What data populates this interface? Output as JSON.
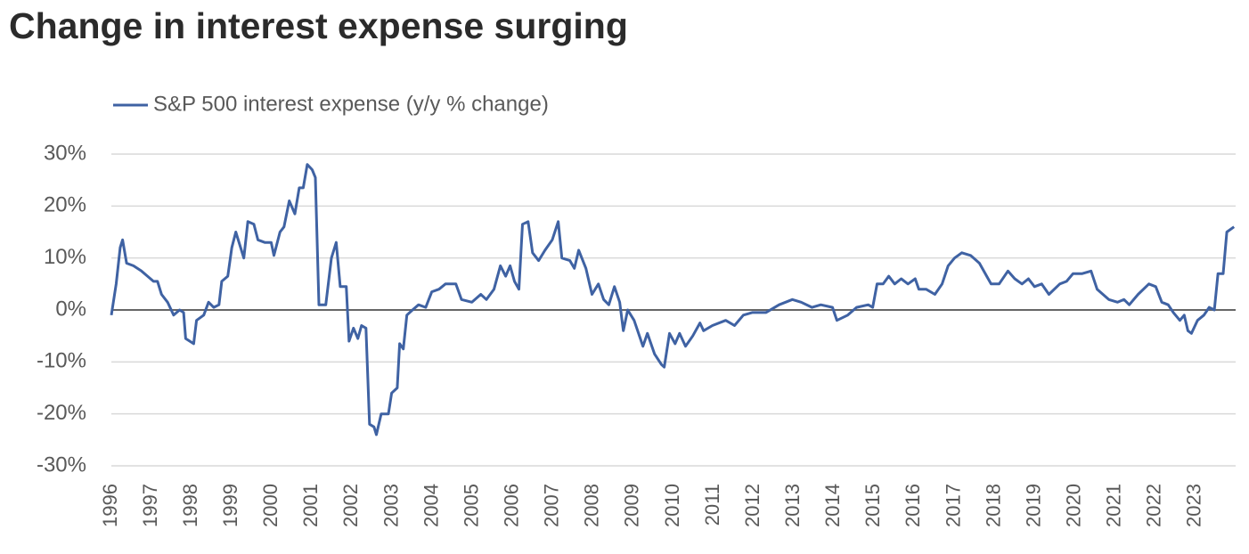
{
  "chart_data": {
    "type": "line",
    "title": "Change in interest expense surging",
    "x": [
      1996.0,
      1996.12,
      1996.22,
      1996.28,
      1996.38,
      1996.55,
      1996.75,
      1996.9,
      1997.05,
      1997.15,
      1997.25,
      1997.4,
      1997.55,
      1997.7,
      1997.8,
      1997.85,
      1998.05,
      1998.12,
      1998.3,
      1998.42,
      1998.55,
      1998.68,
      1998.75,
      1998.9,
      1999.0,
      1999.1,
      1999.18,
      1999.3,
      1999.4,
      1999.55,
      1999.65,
      1999.82,
      1999.98,
      2000.05,
      2000.2,
      2000.3,
      2000.43,
      2000.57,
      2000.68,
      2000.78,
      2000.88,
      2001.0,
      2001.08,
      2001.17,
      2001.34,
      2001.48,
      2001.6,
      2001.7,
      2001.85,
      2001.92,
      2002.03,
      2002.14,
      2002.23,
      2002.34,
      2002.43,
      2002.54,
      2002.6,
      2002.72,
      2002.9,
      2002.98,
      2003.12,
      2003.18,
      2003.27,
      2003.36,
      2003.5,
      2003.65,
      2003.83,
      2003.98,
      2004.16,
      2004.32,
      2004.58,
      2004.72,
      2004.98,
      2005.2,
      2005.34,
      2005.53,
      2005.69,
      2005.82,
      2005.93,
      2006.04,
      2006.15,
      2006.24,
      2006.38,
      2006.49,
      2006.64,
      2006.8,
      2006.98,
      2007.13,
      2007.22,
      2007.42,
      2007.53,
      2007.64,
      2007.82,
      2007.97,
      2008.13,
      2008.26,
      2008.39,
      2008.53,
      2008.66,
      2008.75,
      2008.86,
      2009.02,
      2009.24,
      2009.35,
      2009.53,
      2009.7,
      2009.77,
      2009.9,
      2010.04,
      2010.15,
      2010.3,
      2010.48,
      2010.66,
      2010.75,
      2010.97,
      2011.3,
      2011.52,
      2011.74,
      2011.96,
      2012.3,
      2012.63,
      2012.96,
      2013.18,
      2013.45,
      2013.67,
      2013.96,
      2014.07,
      2014.34,
      2014.56,
      2014.85,
      2014.96,
      2015.07,
      2015.22,
      2015.36,
      2015.51,
      2015.67,
      2015.84,
      2016.02,
      2016.11,
      2016.29,
      2016.51,
      2016.69,
      2016.84,
      2017.0,
      2017.18,
      2017.4,
      2017.62,
      2017.8,
      2017.91,
      2018.11,
      2018.33,
      2018.5,
      2018.68,
      2018.84,
      2018.99,
      2019.17,
      2019.35,
      2019.62,
      2019.79,
      2019.95,
      2020.18,
      2020.4,
      2020.55,
      2020.84,
      2021.06,
      2021.22,
      2021.35,
      2021.57,
      2021.84,
      2022.01,
      2022.16,
      2022.32,
      2022.45,
      2022.61,
      2022.72,
      2022.81,
      2022.9,
      2023.05,
      2023.21,
      2023.34,
      2023.47,
      2023.56,
      2023.69,
      2023.78,
      2023.96
    ],
    "series": [
      {
        "name": "S&P 500 interest expense (y/y % change)",
        "color": "#3f62a3",
        "values": [
          -1,
          5,
          12,
          13.5,
          9,
          8.5,
          7.5,
          6.5,
          5.5,
          5.5,
          3,
          1.5,
          -1,
          0,
          -0.5,
          -5.5,
          -6.5,
          -2,
          -1,
          1.5,
          0.5,
          1,
          5.5,
          6.5,
          12,
          15,
          13,
          10,
          17,
          16.5,
          13.5,
          13,
          13,
          10.5,
          15,
          16,
          21,
          18.5,
          23.5,
          23.5,
          28,
          27,
          25.5,
          1,
          1,
          10,
          13,
          4.5,
          4.5,
          -6,
          -3.5,
          -5.5,
          -3,
          -3.5,
          -22,
          -22.5,
          -24,
          -20,
          -20,
          -16,
          -15,
          -6.5,
          -7.5,
          -1,
          0,
          1,
          0.5,
          3.5,
          4,
          5,
          5,
          2,
          1.5,
          3,
          2,
          4,
          8.5,
          6.5,
          8.5,
          5.5,
          4,
          16.5,
          17,
          11,
          9.5,
          11.5,
          13.5,
          17,
          10,
          9.5,
          8,
          11.5,
          8,
          3,
          5,
          2,
          1,
          4.5,
          1.5,
          -4,
          0,
          -2,
          -7,
          -4.5,
          -8.5,
          -10.5,
          -11,
          -4.5,
          -6.5,
          -4.5,
          -7,
          -5,
          -2.5,
          -4,
          -3,
          -2,
          -3,
          -1,
          -0.5,
          -0.5,
          1,
          2,
          1.5,
          0.5,
          1,
          0.5,
          -2,
          -1,
          0.5,
          1,
          0.5,
          5,
          5,
          6.5,
          5,
          6,
          5,
          6,
          4,
          4,
          3,
          5,
          8.5,
          10,
          11,
          10.5,
          9,
          6.5,
          5,
          5,
          7.5,
          6,
          5,
          6,
          4.5,
          5,
          3,
          5,
          5.5,
          7,
          7,
          7.5,
          4,
          2,
          1.5,
          2,
          1,
          3,
          5,
          4.5,
          1.5,
          1,
          -0.5,
          -2,
          -1,
          -4,
          -4.5,
          -2,
          -1,
          0.5,
          0,
          7,
          7,
          15,
          16
        ]
      }
    ],
    "xlim": [
      1996,
      2024
    ],
    "xticks": [
      1996,
      1997,
      1998,
      1999,
      2000,
      2001,
      2002,
      2003,
      2004,
      2005,
      2006,
      2007,
      2008,
      2009,
      2010,
      2011,
      2012,
      2013,
      2014,
      2015,
      2016,
      2017,
      2018,
      2019,
      2020,
      2021,
      2022,
      2023
    ],
    "ylim": [
      -30,
      30
    ],
    "yticks": [
      {
        "value": -30,
        "label": "-30%"
      },
      {
        "value": -20,
        "label": "-20%"
      },
      {
        "value": -10,
        "label": "-10%"
      },
      {
        "value": 0,
        "label": "0%"
      },
      {
        "value": 10,
        "label": "10%"
      },
      {
        "value": 20,
        "label": "20%"
      },
      {
        "value": 30,
        "label": "30%"
      }
    ],
    "grid": true,
    "legend": "top-left"
  }
}
